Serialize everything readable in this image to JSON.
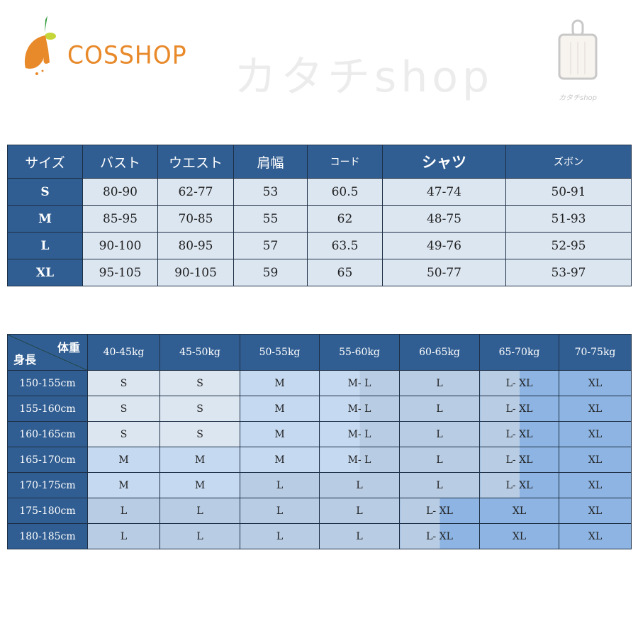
{
  "logo": {
    "text": "COSSHOP",
    "colors": {
      "orange": "#e8892a",
      "green": "#2f9a3a",
      "lime": "#c5d63a"
    }
  },
  "brand": {
    "label": "カタチshop",
    "icon": "cutting-board-icon"
  },
  "watermark": "カタチshop",
  "size_table": {
    "headers": [
      "サイズ",
      "バスト",
      "ウエスト",
      "肩幅",
      "コード",
      "シャツ",
      "ズボン"
    ],
    "rows": [
      [
        "S",
        "80-90",
        "62-77",
        "53",
        "60.5",
        "47-74",
        "50-91"
      ],
      [
        "M",
        "85-95",
        "70-85",
        "55",
        "62",
        "48-75",
        "51-93"
      ],
      [
        "L",
        "90-100",
        "80-95",
        "57",
        "63.5",
        "49-76",
        "52-95"
      ],
      [
        "XL",
        "95-105",
        "90-105",
        "59",
        "65",
        "50-77",
        "53-97"
      ]
    ]
  },
  "fit_table": {
    "corner_weight": "体重",
    "corner_height": "身長",
    "weights": [
      "40-45kg",
      "45-50kg",
      "50-55kg",
      "55-60kg",
      "60-65kg",
      "65-70kg",
      "70-75kg"
    ],
    "rows": [
      {
        "height": "150-155cm",
        "sizes": [
          "S",
          "S",
          "M",
          "M- L",
          "L",
          "L- XL",
          "XL"
        ]
      },
      {
        "height": "155-160cm",
        "sizes": [
          "S",
          "S",
          "M",
          "M- L",
          "L",
          "L- XL",
          "XL"
        ]
      },
      {
        "height": "160-165cm",
        "sizes": [
          "S",
          "S",
          "M",
          "M- L",
          "L",
          "L- XL",
          "XL"
        ]
      },
      {
        "height": "165-170cm",
        "sizes": [
          "M",
          "M",
          "M",
          "M- L",
          "L",
          "L- XL",
          "XL"
        ]
      },
      {
        "height": "170-175cm",
        "sizes": [
          "M",
          "M",
          "L",
          "L",
          "L",
          "L- XL",
          "XL"
        ]
      },
      {
        "height": "175-180cm",
        "sizes": [
          "L",
          "L",
          "L",
          "L",
          "L- XL",
          "XL",
          "XL"
        ]
      },
      {
        "height": "180-185cm",
        "sizes": [
          "L",
          "L",
          "L",
          "L",
          "L- XL",
          "XL",
          "XL"
        ]
      }
    ]
  },
  "colors": {
    "header": "#315e92",
    "S": "#dce6f1",
    "M": "#c5d9f1",
    "L": "#b8cce4",
    "XL": "#8db4e2"
  }
}
